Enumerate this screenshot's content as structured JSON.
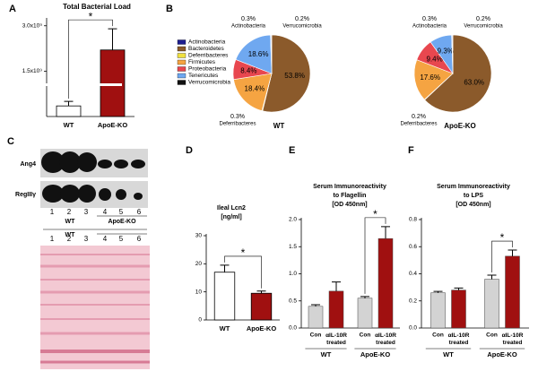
{
  "panels": [
    "A",
    "B",
    "C",
    "D",
    "E",
    "F"
  ],
  "chart_data": [
    {
      "type": "bar",
      "title": "Total Bacterial Load",
      "categories": [
        "WT",
        "ApoE-KO"
      ],
      "values": [
        350000000,
        2200000000
      ],
      "errors": [
        150000000,
        700000000
      ],
      "colors": [
        "#ffffff",
        "#a01010"
      ],
      "ylim": [
        0,
        3200000000
      ],
      "yticks": [
        {
          "value": 1500000000,
          "label": "1.5x10⁹"
        },
        {
          "value": 3000000000,
          "label": "3.0x10⁹"
        }
      ],
      "annotation": "*"
    },
    {
      "type": "pie",
      "title": "WT",
      "categories": [
        "Actinobacteria",
        "Bacteroidetes",
        "Deferribacteres",
        "Firmicutes",
        "Proteobacteria",
        "Tenericutes",
        "Verrucomicrobia"
      ],
      "colors": [
        "#1f1f8f",
        "#8b5a2b",
        "#f0e040",
        "#f5a442",
        "#e8474f",
        "#6fa8f0",
        "#111111"
      ],
      "values": [
        0.3,
        53.8,
        0.3,
        18.4,
        8.4,
        18.6,
        0.2
      ],
      "value_labels": [
        "0.3%",
        "53.8%",
        "0.3%",
        "18.4%",
        "8.4%",
        "18.6%",
        "0.2%"
      ]
    },
    {
      "type": "pie",
      "title": "ApoE-KO",
      "categories": [
        "Actinobacteria",
        "Bacteroidetes",
        "Deferribacteres",
        "Firmicutes",
        "Proteobacteria",
        "Tenericutes",
        "Verrucomicrobia"
      ],
      "colors": [
        "#1f1f8f",
        "#8b5a2b",
        "#f0e040",
        "#f5a442",
        "#e8474f",
        "#6fa8f0",
        "#111111"
      ],
      "values": [
        0.3,
        63.0,
        0.2,
        17.6,
        9.4,
        9.3,
        0.2
      ],
      "value_labels": [
        "0.3%",
        "63.0%",
        "0.2%",
        "17.6%",
        "9.4%",
        "9.3%",
        "0.2%"
      ]
    },
    {
      "type": "bar",
      "title": [
        "Ileal Lcn2",
        "[ng/ml]"
      ],
      "categories": [
        "WT",
        "ApoE-KO"
      ],
      "values": [
        17,
        9.5
      ],
      "errors": [
        2.5,
        0.8
      ],
      "colors": [
        "#ffffff",
        "#a01010"
      ],
      "ylim": [
        0,
        30
      ],
      "yticks": [
        0,
        10,
        20,
        30
      ],
      "annotation": "*"
    },
    {
      "type": "grouped_bar",
      "title": [
        "Serum Immunoreactivity",
        "to Flagellin",
        "[OD 450nm]"
      ],
      "categories": [
        "WT",
        "ApoE-KO"
      ],
      "series": [
        {
          "name": "Con",
          "color": "#d3d3d3",
          "values": [
            0.4,
            0.55
          ],
          "errors": [
            0.03,
            0.03
          ]
        },
        {
          "name": "αIL-10R treated",
          "color": "#a01010",
          "values": [
            0.68,
            1.65
          ],
          "errors": [
            0.17,
            0.22
          ]
        }
      ],
      "ylim": [
        0,
        2
      ],
      "yticks": [
        {
          "value": 0,
          "label": "0.0"
        },
        0.5,
        {
          "value": 1,
          "label": "1.0"
        },
        1.5,
        {
          "value": 2,
          "label": "2.0"
        }
      ],
      "annotation": "*"
    },
    {
      "type": "grouped_bar",
      "title": [
        "Serum Immunoreactivity",
        "to LPS",
        "[OD 450nm]"
      ],
      "categories": [
        "WT",
        "ApoE-KO"
      ],
      "series": [
        {
          "name": "Con",
          "color": "#d3d3d3",
          "values": [
            0.26,
            0.36
          ],
          "errors": [
            0.01,
            0.03
          ]
        },
        {
          "name": "αIL-10R treated",
          "color": "#a01010",
          "values": [
            0.28,
            0.53
          ],
          "errors": [
            0.015,
            0.045
          ]
        }
      ],
      "ylim": [
        0,
        0.8
      ],
      "yticks": [
        {
          "value": 0,
          "label": "0.0"
        },
        0.2,
        0.4,
        0.6,
        0.8
      ],
      "annotation": "*"
    }
  ],
  "blot": {
    "bands": [
      "Ang4",
      "RegIIIγ"
    ],
    "lanes": [
      1,
      2,
      3,
      4,
      5,
      6
    ],
    "groups": [
      "WT",
      "ApoE-KO"
    ]
  }
}
